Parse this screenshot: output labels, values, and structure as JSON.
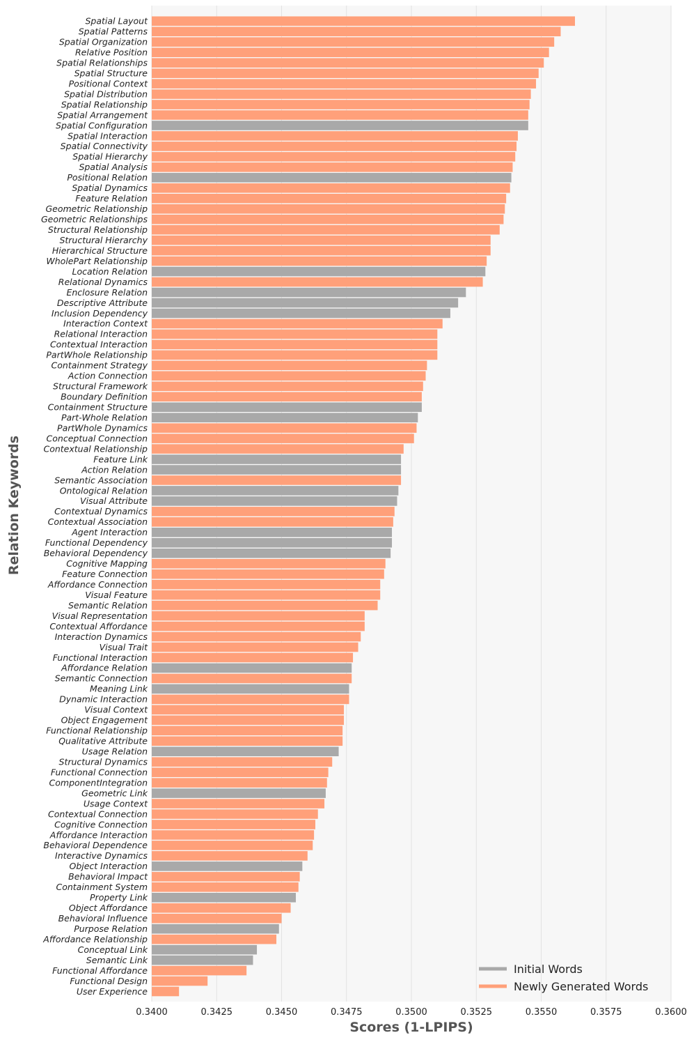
{
  "chart_data": {
    "type": "bar",
    "orientation": "horizontal",
    "xlabel": "Scores (1-LPIPS)",
    "ylabel": "Relation Keywords",
    "xlim": [
      0.34,
      0.36
    ],
    "xticks": [
      "0.3400",
      "0.3425",
      "0.3450",
      "0.3475",
      "0.3500",
      "0.3525",
      "0.3550",
      "0.3575",
      "0.3600"
    ],
    "grid": true,
    "legend_position": "bottom-right",
    "series": [
      {
        "name": "Initial Words",
        "color": "#a9a9a9"
      },
      {
        "name": "Newly Generated Words",
        "color": "#ffa07a"
      }
    ],
    "bars": [
      {
        "label": "Spatial Layout",
        "value": 0.3563,
        "series": "Newly Generated Words"
      },
      {
        "label": "Spatial Patterns",
        "value": 0.35575,
        "series": "Newly Generated Words"
      },
      {
        "label": "Spatial Organization",
        "value": 0.3555,
        "series": "Newly Generated Words"
      },
      {
        "label": "Relative Position",
        "value": 0.3553,
        "series": "Newly Generated Words"
      },
      {
        "label": "Spatial Relationships",
        "value": 0.3551,
        "series": "Newly Generated Words"
      },
      {
        "label": "Spatial Structure",
        "value": 0.3549,
        "series": "Newly Generated Words"
      },
      {
        "label": "Positional Context",
        "value": 0.3548,
        "series": "Newly Generated Words"
      },
      {
        "label": "Spatial Distribution",
        "value": 0.3546,
        "series": "Newly Generated Words"
      },
      {
        "label": "Spatial Relationship",
        "value": 0.35455,
        "series": "Newly Generated Words"
      },
      {
        "label": "Spatial Arrangement",
        "value": 0.3545,
        "series": "Newly Generated Words"
      },
      {
        "label": "Spatial Configuration",
        "value": 0.3545,
        "series": "Initial Words"
      },
      {
        "label": "Spatial Interaction",
        "value": 0.3541,
        "series": "Newly Generated Words"
      },
      {
        "label": "Spatial Connectivity",
        "value": 0.35405,
        "series": "Newly Generated Words"
      },
      {
        "label": "Spatial Hierarchy",
        "value": 0.354,
        "series": "Newly Generated Words"
      },
      {
        "label": "Spatial Analysis",
        "value": 0.3539,
        "series": "Newly Generated Words"
      },
      {
        "label": "Positional Relation",
        "value": 0.35385,
        "series": "Initial Words"
      },
      {
        "label": "Spatial Dynamics",
        "value": 0.3538,
        "series": "Newly Generated Words"
      },
      {
        "label": "Feature Relation",
        "value": 0.35365,
        "series": "Newly Generated Words"
      },
      {
        "label": "Geometric Relationship",
        "value": 0.3536,
        "series": "Newly Generated Words"
      },
      {
        "label": "Geometric Relationships",
        "value": 0.35355,
        "series": "Newly Generated Words"
      },
      {
        "label": "Structural Relationship",
        "value": 0.3534,
        "series": "Newly Generated Words"
      },
      {
        "label": "Structural Hierarchy",
        "value": 0.35305,
        "series": "Newly Generated Words"
      },
      {
        "label": "Hierarchical Structure",
        "value": 0.35305,
        "series": "Newly Generated Words"
      },
      {
        "label": "WholePart Relationship",
        "value": 0.3529,
        "series": "Newly Generated Words"
      },
      {
        "label": "Location Relation",
        "value": 0.35285,
        "series": "Initial Words"
      },
      {
        "label": "Relational Dynamics",
        "value": 0.35275,
        "series": "Newly Generated Words"
      },
      {
        "label": "Enclosure Relation",
        "value": 0.3521,
        "series": "Initial Words"
      },
      {
        "label": "Descriptive Attribute",
        "value": 0.3518,
        "series": "Initial Words"
      },
      {
        "label": "Inclusion Dependency",
        "value": 0.3515,
        "series": "Initial Words"
      },
      {
        "label": "Interaction Context",
        "value": 0.3512,
        "series": "Newly Generated Words"
      },
      {
        "label": "Relational Interaction",
        "value": 0.351,
        "series": "Newly Generated Words"
      },
      {
        "label": "Contextual Interaction",
        "value": 0.351,
        "series": "Newly Generated Words"
      },
      {
        "label": "PartWhole Relationship",
        "value": 0.351,
        "series": "Newly Generated Words"
      },
      {
        "label": "Containment Strategy",
        "value": 0.3506,
        "series": "Newly Generated Words"
      },
      {
        "label": "Action Connection",
        "value": 0.35055,
        "series": "Newly Generated Words"
      },
      {
        "label": "Structural Framework",
        "value": 0.35045,
        "series": "Newly Generated Words"
      },
      {
        "label": "Boundary Definition",
        "value": 0.3504,
        "series": "Newly Generated Words"
      },
      {
        "label": "Containment Structure",
        "value": 0.3504,
        "series": "Initial Words"
      },
      {
        "label": "Part-Whole Relation",
        "value": 0.35025,
        "series": "Initial Words"
      },
      {
        "label": "PartWhole Dynamics",
        "value": 0.3502,
        "series": "Newly Generated Words"
      },
      {
        "label": "Conceptual Connection",
        "value": 0.3501,
        "series": "Newly Generated Words"
      },
      {
        "label": "Contextual Relationship",
        "value": 0.3497,
        "series": "Newly Generated Words"
      },
      {
        "label": "Feature Link",
        "value": 0.3496,
        "series": "Initial Words"
      },
      {
        "label": "Action Relation",
        "value": 0.3496,
        "series": "Initial Words"
      },
      {
        "label": "Semantic Association",
        "value": 0.3496,
        "series": "Newly Generated Words"
      },
      {
        "label": "Ontological Relation",
        "value": 0.3495,
        "series": "Initial Words"
      },
      {
        "label": "Visual Attribute",
        "value": 0.34945,
        "series": "Initial Words"
      },
      {
        "label": "Contextual Dynamics",
        "value": 0.34935,
        "series": "Newly Generated Words"
      },
      {
        "label": "Contextual Association",
        "value": 0.3493,
        "series": "Newly Generated Words"
      },
      {
        "label": "Agent Interaction",
        "value": 0.34925,
        "series": "Initial Words"
      },
      {
        "label": "Functional Dependency",
        "value": 0.34925,
        "series": "Initial Words"
      },
      {
        "label": "Behavioral Dependency",
        "value": 0.3492,
        "series": "Initial Words"
      },
      {
        "label": "Cognitive Mapping",
        "value": 0.349,
        "series": "Newly Generated Words"
      },
      {
        "label": "Feature Connection",
        "value": 0.34895,
        "series": "Newly Generated Words"
      },
      {
        "label": "Affordance Connection",
        "value": 0.3488,
        "series": "Newly Generated Words"
      },
      {
        "label": "Visual Feature",
        "value": 0.3488,
        "series": "Newly Generated Words"
      },
      {
        "label": "Semantic Relation",
        "value": 0.3487,
        "series": "Newly Generated Words"
      },
      {
        "label": "Visual Representation",
        "value": 0.3482,
        "series": "Newly Generated Words"
      },
      {
        "label": "Contextual Affordance",
        "value": 0.3482,
        "series": "Newly Generated Words"
      },
      {
        "label": "Interaction Dynamics",
        "value": 0.34805,
        "series": "Newly Generated Words"
      },
      {
        "label": "Visual Trait",
        "value": 0.34795,
        "series": "Newly Generated Words"
      },
      {
        "label": "Functional Interaction",
        "value": 0.34775,
        "series": "Newly Generated Words"
      },
      {
        "label": "Affordance Relation",
        "value": 0.3477,
        "series": "Initial Words"
      },
      {
        "label": "Semantic Connection",
        "value": 0.3477,
        "series": "Newly Generated Words"
      },
      {
        "label": "Meaning Link",
        "value": 0.3476,
        "series": "Initial Words"
      },
      {
        "label": "Dynamic Interaction",
        "value": 0.3476,
        "series": "Newly Generated Words"
      },
      {
        "label": "Visual Context",
        "value": 0.3474,
        "series": "Newly Generated Words"
      },
      {
        "label": "Object Engagement",
        "value": 0.3474,
        "series": "Newly Generated Words"
      },
      {
        "label": "Functional Relationship",
        "value": 0.34735,
        "series": "Newly Generated Words"
      },
      {
        "label": "Qualitative Attribute",
        "value": 0.34735,
        "series": "Newly Generated Words"
      },
      {
        "label": "Usage Relation",
        "value": 0.3472,
        "series": "Initial Words"
      },
      {
        "label": "Structural Dynamics",
        "value": 0.34695,
        "series": "Newly Generated Words"
      },
      {
        "label": "Functional Connection",
        "value": 0.3468,
        "series": "Newly Generated Words"
      },
      {
        "label": "ComponentIntegration",
        "value": 0.34675,
        "series": "Newly Generated Words"
      },
      {
        "label": "Geometric Link",
        "value": 0.3467,
        "series": "Initial Words"
      },
      {
        "label": "Usage Context",
        "value": 0.34665,
        "series": "Newly Generated Words"
      },
      {
        "label": "Contextual Connection",
        "value": 0.3464,
        "series": "Newly Generated Words"
      },
      {
        "label": "Cognitive Connection",
        "value": 0.3463,
        "series": "Newly Generated Words"
      },
      {
        "label": "Affordance Interaction",
        "value": 0.34625,
        "series": "Newly Generated Words"
      },
      {
        "label": "Behavioral Dependence",
        "value": 0.3462,
        "series": "Newly Generated Words"
      },
      {
        "label": "Interactive Dynamics",
        "value": 0.346,
        "series": "Newly Generated Words"
      },
      {
        "label": "Object Interaction",
        "value": 0.3458,
        "series": "Initial Words"
      },
      {
        "label": "Behavioral Impact",
        "value": 0.3457,
        "series": "Newly Generated Words"
      },
      {
        "label": "Containment System",
        "value": 0.34565,
        "series": "Newly Generated Words"
      },
      {
        "label": "Property Link",
        "value": 0.34555,
        "series": "Initial Words"
      },
      {
        "label": "Object Affordance",
        "value": 0.34535,
        "series": "Newly Generated Words"
      },
      {
        "label": "Behavioral Influence",
        "value": 0.345,
        "series": "Newly Generated Words"
      },
      {
        "label": "Purpose Relation",
        "value": 0.3449,
        "series": "Initial Words"
      },
      {
        "label": "Affordance Relationship",
        "value": 0.3448,
        "series": "Newly Generated Words"
      },
      {
        "label": "Conceptual Link",
        "value": 0.34405,
        "series": "Initial Words"
      },
      {
        "label": "Semantic Link",
        "value": 0.3439,
        "series": "Initial Words"
      },
      {
        "label": "Functional Affordance",
        "value": 0.34365,
        "series": "Newly Generated Words"
      },
      {
        "label": "Functional Design",
        "value": 0.34215,
        "series": "Newly Generated Words"
      },
      {
        "label": "User Experience",
        "value": 0.34105,
        "series": "Newly Generated Words"
      }
    ]
  }
}
